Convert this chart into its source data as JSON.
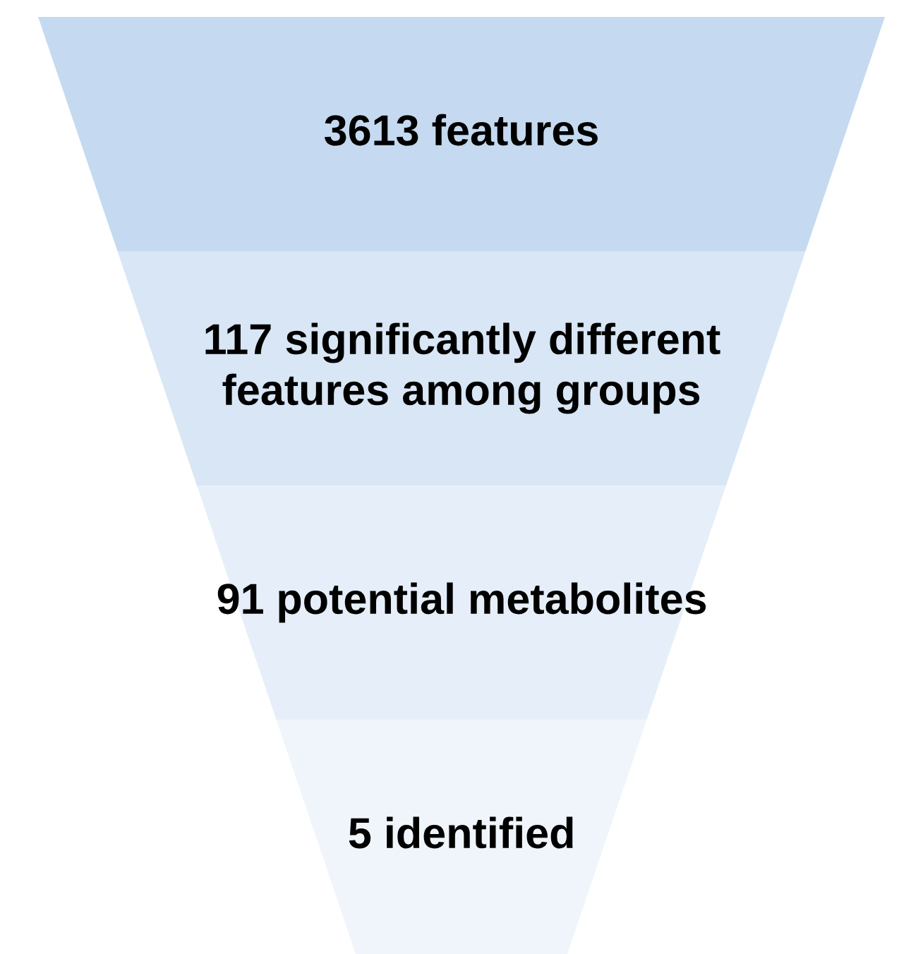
{
  "chart_data": {
    "type": "other",
    "categories": [
      "features",
      "significantly different\nfeatures among groups",
      "potential metabolites",
      "identified"
    ],
    "values": [
      3613,
      117,
      91,
      5
    ],
    "data_labels": true,
    "colors": [
      "#c5daf0",
      "#d8e6f5",
      "#e6eff9",
      "#f0f5fb"
    ]
  }
}
